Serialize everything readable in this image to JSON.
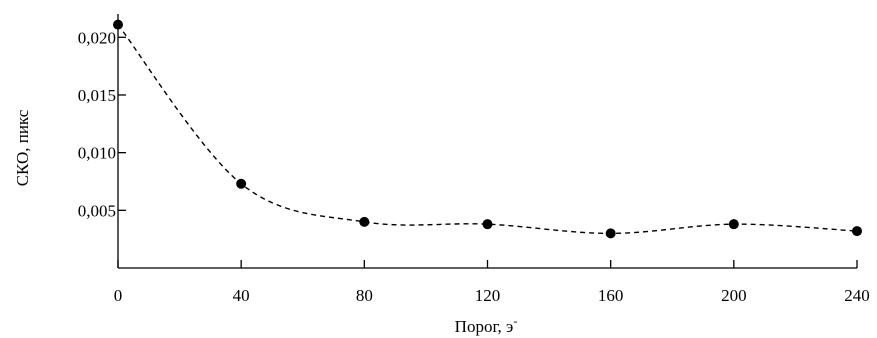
{
  "chart_data": {
    "type": "line",
    "xlabel": "Порог, э",
    "xlabel_sup": "-",
    "ylabel": "СКО, пикс",
    "xlim": [
      0,
      240
    ],
    "ylim": [
      0.0,
      0.0215
    ],
    "x_ticks": [
      0,
      40,
      80,
      120,
      160,
      200,
      240
    ],
    "x_tick_labels": [
      "0",
      "40",
      "80",
      "120",
      "160",
      "200",
      "240"
    ],
    "y_ticks": [
      0.005,
      0.01,
      0.015,
      0.02
    ],
    "y_tick_labels": [
      "0,005",
      "0,010",
      "0,015",
      "0,020"
    ],
    "grid": false,
    "line_style": "dashed",
    "marker": "circle",
    "color": "#000000",
    "series": [
      {
        "x": [
          0,
          40,
          80,
          120,
          160,
          200,
          240
        ],
        "y": [
          0.0211,
          0.0073,
          0.004,
          0.0038,
          0.003,
          0.0038,
          0.0032
        ]
      }
    ]
  }
}
